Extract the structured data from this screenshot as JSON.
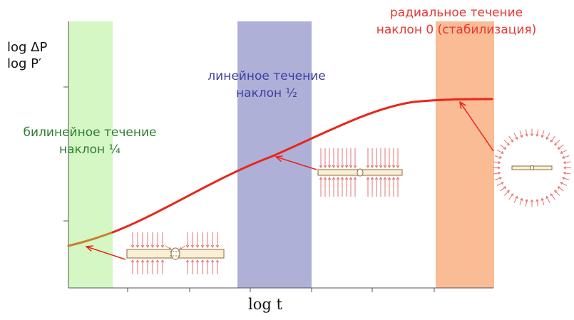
{
  "axes": {
    "ylabel_line1": "log ΔP",
    "ylabel_line2": "log P′",
    "xlabel": "log t"
  },
  "regimes": [
    {
      "id": "bilinear",
      "line1": "билинейное течение",
      "line2": "наклон ¼",
      "band_color": "#d4f7c4",
      "text_color": "#2e7d32"
    },
    {
      "id": "linear",
      "line1": "линейное течение",
      "line2": "наклон ½",
      "band_color": "#aeb0d8",
      "text_color": "#3f3f9e"
    },
    {
      "id": "radial",
      "line1": "радиальное течение",
      "line2": "наклон 0 (стабилизация)",
      "band_color": "#f9bc94",
      "text_color": "#e53935"
    }
  ],
  "colors": {
    "curve": "#e8261c",
    "curve_start": "#c9802e",
    "arrow": "#e8261c",
    "fracture_fill": "#fbefd6",
    "fracture_stroke": "#8a6d3b",
    "flux": "#e57373",
    "axis": "#555555"
  },
  "icons": {
    "bilinear": "bilinear-flow-fracture-icon",
    "linear": "linear-flow-fracture-icon",
    "radial": "radial-flow-fracture-icon"
  }
}
